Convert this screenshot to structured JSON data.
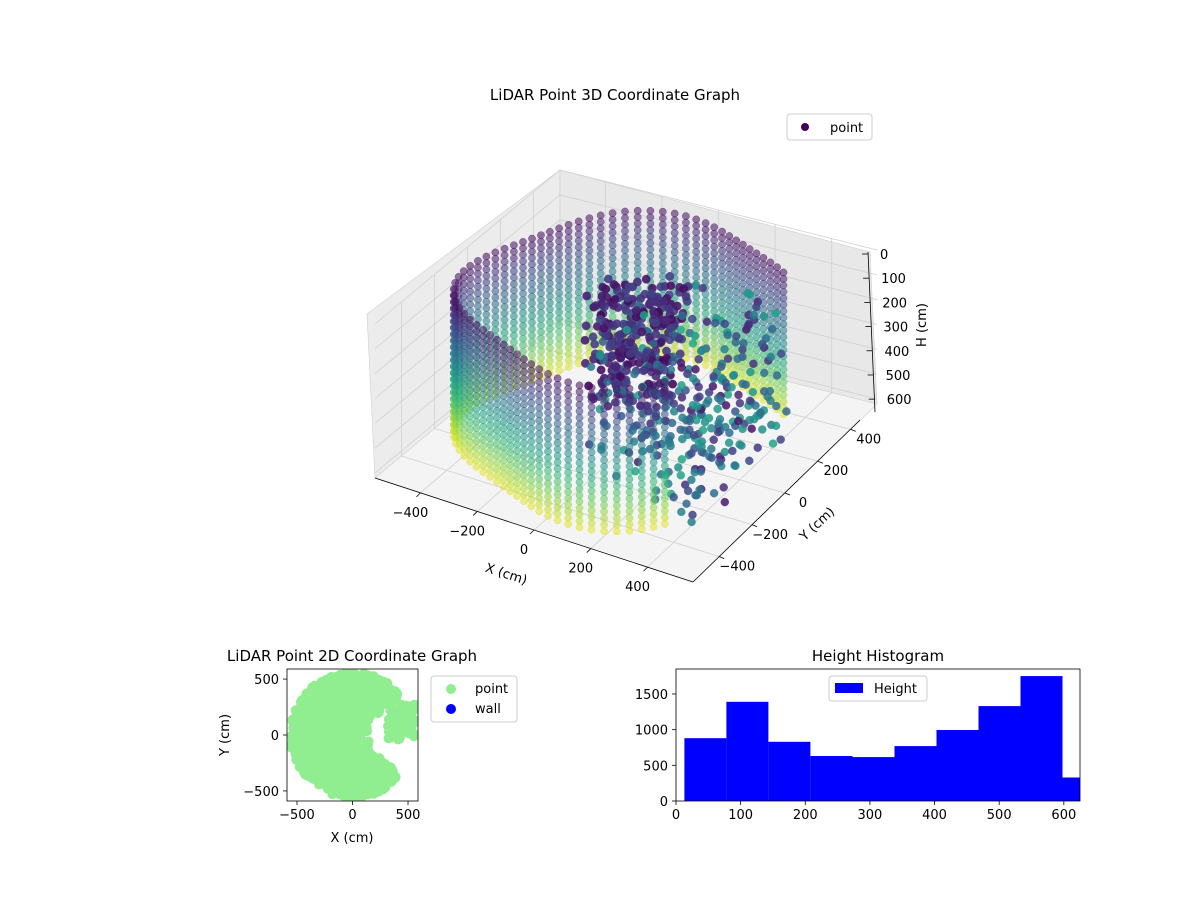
{
  "chart_data": [
    {
      "type": "scatter",
      "projection": "3d",
      "title": "LiDAR Point 3D Coordinate Graph",
      "xlabel": "X (cm)",
      "ylabel": "Y (cm)",
      "zlabel": "H (cm)",
      "xlim": [
        -560,
        560
      ],
      "ylim": [
        -560,
        560
      ],
      "zlim": [
        0,
        620
      ],
      "z_inverted": true,
      "xticks": [
        -400,
        -200,
        0,
        200,
        400
      ],
      "yticks": [
        -400,
        -200,
        0,
        200,
        400
      ],
      "zticks": [
        0,
        100,
        200,
        300,
        400,
        500,
        600
      ],
      "colormap": "viridis",
      "legend": {
        "position": "top-right",
        "entries": [
          "point"
        ]
      },
      "grid": true,
      "series": [
        {
          "name": "point",
          "shape": "open-ring wall of radius ~540 cm, opening toward +X, points spanning heights 0-620 cm",
          "radius": 540,
          "opening_angle_deg": [
            -40,
            40
          ],
          "height_range": [
            0,
            620
          ],
          "marker_color": "#440154"
        }
      ]
    },
    {
      "type": "scatter",
      "title": "LiDAR Point 2D Coordinate Graph",
      "xlabel": "X (cm)",
      "ylabel": "Y (cm)",
      "xlim": [
        -590,
        590
      ],
      "ylim": [
        -590,
        590
      ],
      "xticks": [
        -500,
        0,
        500
      ],
      "yticks": [
        -500,
        0,
        500
      ],
      "legend": {
        "position": "outside-right",
        "entries": [
          "point",
          "wall"
        ]
      },
      "series": [
        {
          "name": "point",
          "color": "#90ee90",
          "shape": "filled disc radius ~560 cm with wedge cut toward +X, extra protrusions at x 300-560",
          "radius": 560
        },
        {
          "name": "wall",
          "color": "#0000ff",
          "values": []
        }
      ]
    },
    {
      "type": "bar",
      "subtype": "histogram",
      "title": "Height Histogram",
      "xlabel": "",
      "ylabel": "",
      "xlim": [
        0,
        625
      ],
      "ylim": [
        0,
        1850
      ],
      "xticks": [
        0,
        100,
        200,
        300,
        400,
        500,
        600
      ],
      "yticks": [
        0,
        500,
        1000,
        1500
      ],
      "legend": {
        "position": "top-center",
        "entries": [
          "Height"
        ]
      },
      "series": [
        {
          "name": "Height",
          "color": "#0000ff",
          "bin_edges": [
            13,
            78,
            143,
            208,
            273,
            338,
            403,
            468,
            533,
            598,
            625
          ],
          "values": [
            880,
            1390,
            830,
            630,
            615,
            770,
            995,
            1330,
            1750,
            330
          ]
        }
      ]
    }
  ]
}
